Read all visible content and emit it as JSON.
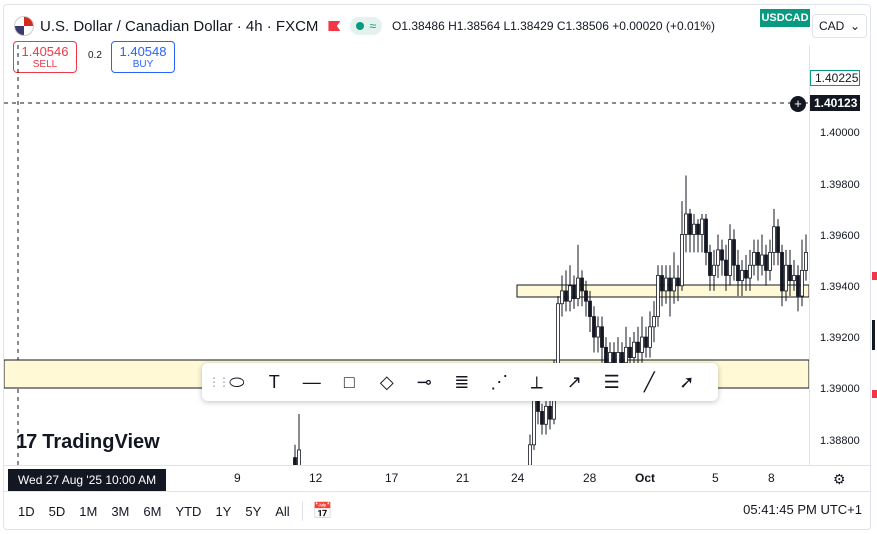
{
  "header": {
    "title": "U.S. Dollar / Canadian Dollar · 4h · FXCM",
    "ohlc": "O1.38486 H1.38564 L1.38429 C1.38506 +0.00020 (+0.01%)",
    "symbol_tag": "USDCAD",
    "currency": "CAD",
    "currency_arrow": "⌄"
  },
  "trade": {
    "sell_price": "1.40546",
    "sell_label": "SELL",
    "buy_price": "1.40548",
    "buy_label": "BUY",
    "spread": "0.2"
  },
  "price_scale": {
    "tags": [
      "1.40225",
      "1.40123"
    ],
    "ticks": [
      "1.40000",
      "1.39800",
      "1.39600",
      "1.39400",
      "1.39200",
      "1.39000",
      "1.38800"
    ]
  },
  "time_axis": {
    "date_box": "Wed 27 Aug '25   10:00 AM",
    "labels": [
      "9",
      "12",
      "17",
      "21",
      "24",
      "28",
      "Oct",
      "5",
      "8"
    ]
  },
  "logo": {
    "text": "TradingView"
  },
  "bottom": {
    "ranges": [
      "1D",
      "5D",
      "1M",
      "3M",
      "6M",
      "YTD",
      "1Y",
      "5Y",
      "All"
    ],
    "clock": "05:41:45 PM UTC+1"
  },
  "toolbar": {
    "tools": [
      "ellipse-icon",
      "text-icon",
      "horizontal-ray-icon",
      "rectangle-icon",
      "rotated-rectangle-icon",
      "horizontal-line-icon",
      "fib-retracement-icon",
      "parallel-channel-icon",
      "price-range-icon",
      "path-icon",
      "gann-fan-icon",
      "trend-line-icon",
      "arrow-icon"
    ]
  },
  "colors": {
    "up": "#089981",
    "down": "#f23645",
    "zone_fill": "#fff9d6",
    "zone_border": "#131722",
    "accent": "#2962ff"
  }
}
